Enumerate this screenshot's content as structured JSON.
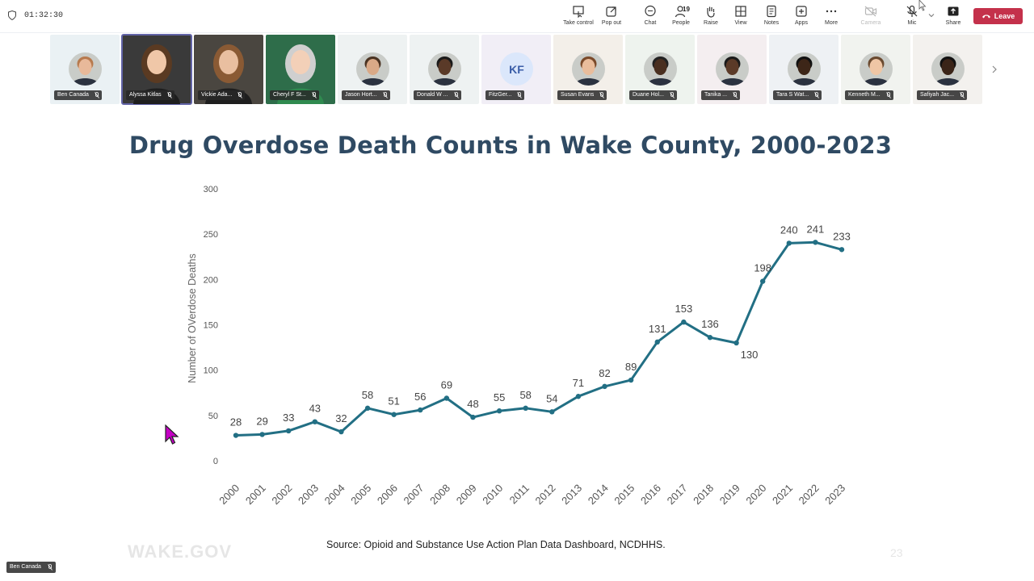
{
  "meeting": {
    "timer": "01:32:30",
    "toolbar": [
      {
        "label": "Take control",
        "icon": "take-control-icon",
        "enabled": true
      },
      {
        "label": "Pop out",
        "icon": "pop-out-icon",
        "enabled": true
      },
      {
        "label": "Chat",
        "icon": "chat-icon",
        "enabled": true
      },
      {
        "label": "People",
        "icon": "people-icon",
        "enabled": true,
        "count": "19"
      },
      {
        "label": "Raise",
        "icon": "raise-hand-icon",
        "enabled": true
      },
      {
        "label": "View",
        "icon": "view-icon",
        "enabled": true
      },
      {
        "label": "Notes",
        "icon": "notes-icon",
        "enabled": true
      },
      {
        "label": "Apps",
        "icon": "apps-icon",
        "enabled": true
      },
      {
        "label": "More",
        "icon": "more-icon",
        "enabled": true
      },
      {
        "label": "Camera",
        "icon": "camera-off-icon",
        "enabled": false
      },
      {
        "label": "Mic",
        "icon": "mic-off-icon",
        "enabled": true
      },
      {
        "label": "Share",
        "icon": "share-icon",
        "enabled": true
      }
    ],
    "leave_label": "Leave",
    "leave_color": "#c4314b",
    "participants": [
      {
        "name": "Ben Canada",
        "type": "photo"
      },
      {
        "name": "Alyssa Kitlas",
        "type": "video",
        "active": true
      },
      {
        "name": "Vickie Ada...",
        "type": "video"
      },
      {
        "name": "Cheryl F St...",
        "type": "video"
      },
      {
        "name": "Jason Hort...",
        "type": "photo"
      },
      {
        "name": "Donald W ...",
        "type": "photo"
      },
      {
        "name": "FitzGer...",
        "type": "initials",
        "initials": "KF"
      },
      {
        "name": "Susan Evans",
        "type": "photo"
      },
      {
        "name": "Duane Hol...",
        "type": "photo"
      },
      {
        "name": "Tanika ...",
        "type": "photo"
      },
      {
        "name": "Tara S Wat...",
        "type": "photo"
      },
      {
        "name": "Kenneth M...",
        "type": "photo"
      },
      {
        "name": "Safiyah Jac...",
        "type": "photo"
      }
    ],
    "self_view_name": "Ben Canada"
  },
  "slide": {
    "title": "Drug Overdose Death Counts in Wake County, 2000-2023",
    "source": "Source: Opioid and Substance Use Action Plan Data Dashboard, NCDHHS.",
    "footer_logo": "WAKE.GOV",
    "slide_number": "23"
  },
  "chart_data": {
    "type": "line",
    "title": "Drug Overdose Death Counts in Wake County, 2000-2023",
    "xlabel": "",
    "ylabel": "Number of OVerdose Deaths",
    "ylim": [
      0,
      300
    ],
    "yticks": [
      0,
      50,
      100,
      150,
      200,
      250,
      300
    ],
    "grid": false,
    "line_color": "#226f84",
    "x": [
      "2000",
      "2001",
      "2002",
      "2003",
      "2004",
      "2005",
      "2006",
      "2007",
      "2008",
      "2009",
      "2010",
      "2011",
      "2012",
      "2013",
      "2014",
      "2015",
      "2016",
      "2017",
      "2018",
      "2019",
      "2020",
      "2021",
      "2022",
      "2023"
    ],
    "series": [
      {
        "values": [
          28,
          29,
          33,
          43,
          32,
          58,
          51,
          56,
          69,
          48,
          55,
          58,
          54,
          71,
          82,
          89,
          131,
          153,
          136,
          130,
          198,
          240,
          241,
          233
        ]
      }
    ]
  }
}
